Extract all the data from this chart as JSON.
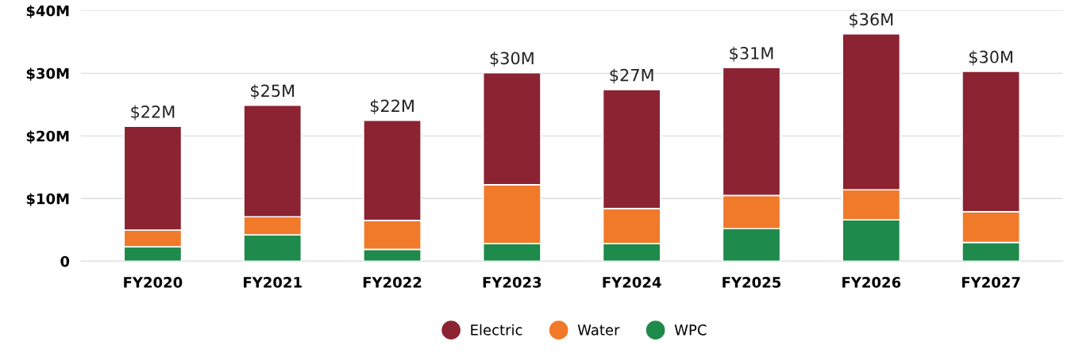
{
  "chart_data": {
    "type": "bar",
    "stacked": true,
    "categories": [
      "FY2020",
      "FY2021",
      "FY2022",
      "FY2023",
      "FY2024",
      "FY2025",
      "FY2026",
      "FY2027"
    ],
    "series": [
      {
        "name": "WPC",
        "color": "#1e8a4c",
        "values": [
          2.3,
          4.2,
          1.9,
          2.8,
          2.8,
          5.2,
          6.6,
          3.0
        ]
      },
      {
        "name": "Water",
        "color": "#f07a2a",
        "values": [
          2.65,
          2.9,
          4.6,
          9.4,
          5.6,
          5.3,
          4.8,
          4.9
        ]
      },
      {
        "name": "Electric",
        "color": "#8b2332",
        "values": [
          16.6,
          17.8,
          16.0,
          17.9,
          19.0,
          20.4,
          24.9,
          22.4
        ]
      }
    ],
    "totals": [
      "$22M",
      "$25M",
      "$22M",
      "$30M",
      "$27M",
      "$31M",
      "$36M",
      "$30M"
    ],
    "ylim": [
      0,
      40
    ],
    "yticks": [
      {
        "value": 0,
        "label": "0"
      },
      {
        "value": 10,
        "label": "$10M"
      },
      {
        "value": 20,
        "label": "$20M"
      },
      {
        "value": 30,
        "label": "$30M"
      },
      {
        "value": 40,
        "label": "$40M"
      }
    ],
    "grid": "y",
    "legend": "bottom",
    "marker": "circle"
  }
}
